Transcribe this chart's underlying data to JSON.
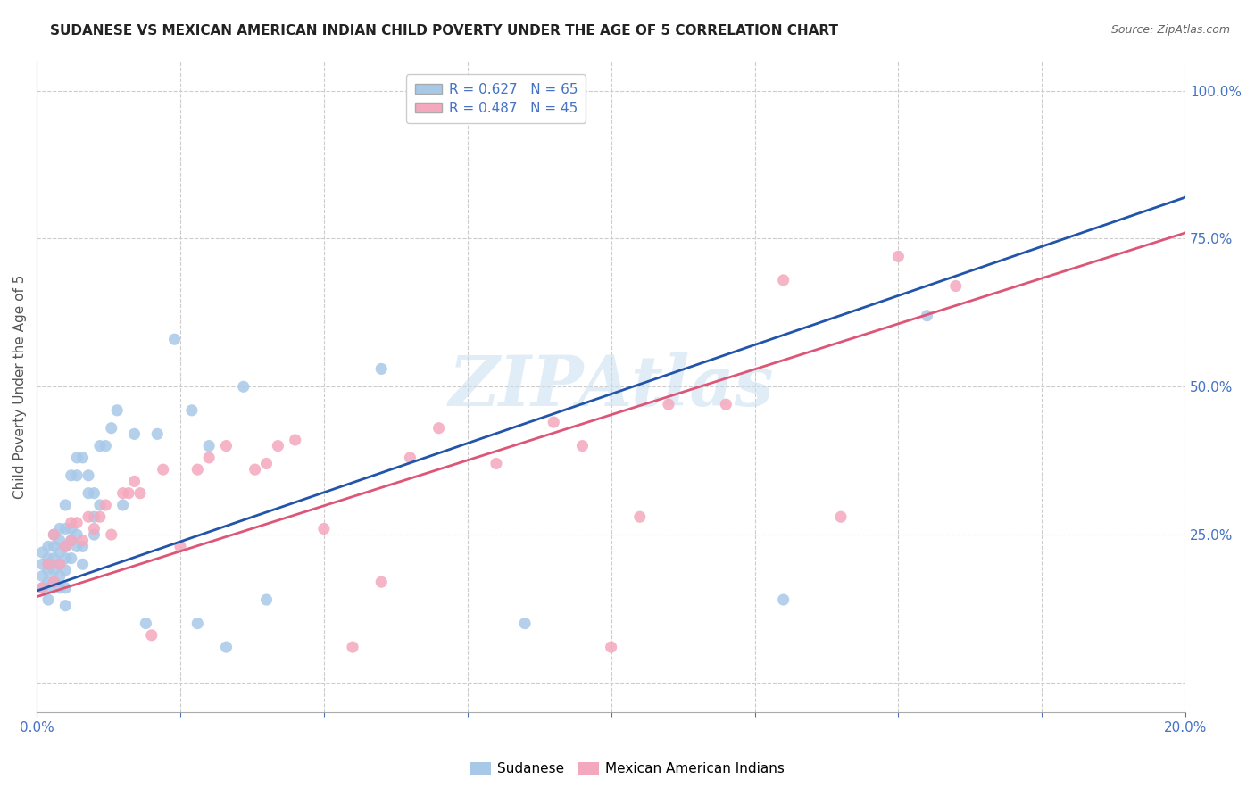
{
  "title": "SUDANESE VS MEXICAN AMERICAN INDIAN CHILD POVERTY UNDER THE AGE OF 5 CORRELATION CHART",
  "source": "Source: ZipAtlas.com",
  "ylabel": "Child Poverty Under the Age of 5",
  "xlim": [
    0.0,
    0.2
  ],
  "ylim": [
    -0.05,
    1.05
  ],
  "yticks": [
    0.0,
    0.25,
    0.5,
    0.75,
    1.0
  ],
  "ytick_labels": [
    "",
    "25.0%",
    "50.0%",
    "75.0%",
    "100.0%"
  ],
  "xticks": [
    0.0,
    0.025,
    0.05,
    0.075,
    0.1,
    0.125,
    0.15,
    0.175,
    0.2
  ],
  "blue_R": 0.627,
  "blue_N": 65,
  "pink_R": 0.487,
  "pink_N": 45,
  "blue_color": "#a8c8e8",
  "pink_color": "#f4a8be",
  "blue_line_color": "#2255aa",
  "pink_line_color": "#dd5577",
  "axis_color": "#4472c4",
  "grid_color": "#cccccc",
  "watermark": "ZIPAtlas",
  "blue_line_x0": 0.0,
  "blue_line_y0": 0.155,
  "blue_line_x1": 0.2,
  "blue_line_y1": 0.82,
  "pink_line_x0": 0.0,
  "pink_line_y0": 0.145,
  "pink_line_x1": 0.2,
  "pink_line_y1": 0.76,
  "blue_scatter_x": [
    0.001,
    0.001,
    0.001,
    0.001,
    0.002,
    0.002,
    0.002,
    0.002,
    0.002,
    0.002,
    0.002,
    0.003,
    0.003,
    0.003,
    0.003,
    0.003,
    0.004,
    0.004,
    0.004,
    0.004,
    0.004,
    0.004,
    0.005,
    0.005,
    0.005,
    0.005,
    0.005,
    0.005,
    0.005,
    0.006,
    0.006,
    0.006,
    0.006,
    0.007,
    0.007,
    0.007,
    0.007,
    0.008,
    0.008,
    0.008,
    0.009,
    0.009,
    0.01,
    0.01,
    0.01,
    0.011,
    0.011,
    0.012,
    0.013,
    0.014,
    0.015,
    0.017,
    0.019,
    0.021,
    0.024,
    0.027,
    0.028,
    0.03,
    0.033,
    0.036,
    0.04,
    0.06,
    0.085,
    0.13,
    0.155
  ],
  "blue_scatter_y": [
    0.18,
    0.2,
    0.22,
    0.16,
    0.17,
    0.19,
    0.21,
    0.23,
    0.2,
    0.14,
    0.16,
    0.19,
    0.21,
    0.17,
    0.23,
    0.25,
    0.18,
    0.2,
    0.22,
    0.24,
    0.16,
    0.26,
    0.19,
    0.21,
    0.23,
    0.16,
    0.26,
    0.3,
    0.13,
    0.21,
    0.24,
    0.26,
    0.35,
    0.23,
    0.25,
    0.35,
    0.38,
    0.2,
    0.23,
    0.38,
    0.32,
    0.35,
    0.25,
    0.28,
    0.32,
    0.3,
    0.4,
    0.4,
    0.43,
    0.46,
    0.3,
    0.42,
    0.1,
    0.42,
    0.58,
    0.46,
    0.1,
    0.4,
    0.06,
    0.5,
    0.14,
    0.53,
    0.1,
    0.14,
    0.62
  ],
  "pink_scatter_x": [
    0.001,
    0.002,
    0.003,
    0.003,
    0.004,
    0.005,
    0.006,
    0.006,
    0.007,
    0.008,
    0.009,
    0.01,
    0.011,
    0.012,
    0.013,
    0.015,
    0.016,
    0.017,
    0.018,
    0.02,
    0.022,
    0.025,
    0.028,
    0.03,
    0.033,
    0.038,
    0.04,
    0.042,
    0.045,
    0.05,
    0.055,
    0.06,
    0.065,
    0.07,
    0.08,
    0.09,
    0.095,
    0.1,
    0.105,
    0.11,
    0.12,
    0.13,
    0.14,
    0.15,
    0.16
  ],
  "pink_scatter_y": [
    0.16,
    0.2,
    0.17,
    0.25,
    0.2,
    0.23,
    0.27,
    0.24,
    0.27,
    0.24,
    0.28,
    0.26,
    0.28,
    0.3,
    0.25,
    0.32,
    0.32,
    0.34,
    0.32,
    0.08,
    0.36,
    0.23,
    0.36,
    0.38,
    0.4,
    0.36,
    0.37,
    0.4,
    0.41,
    0.26,
    0.06,
    0.17,
    0.38,
    0.43,
    0.37,
    0.44,
    0.4,
    0.06,
    0.28,
    0.47,
    0.47,
    0.68,
    0.28,
    0.72,
    0.67
  ]
}
